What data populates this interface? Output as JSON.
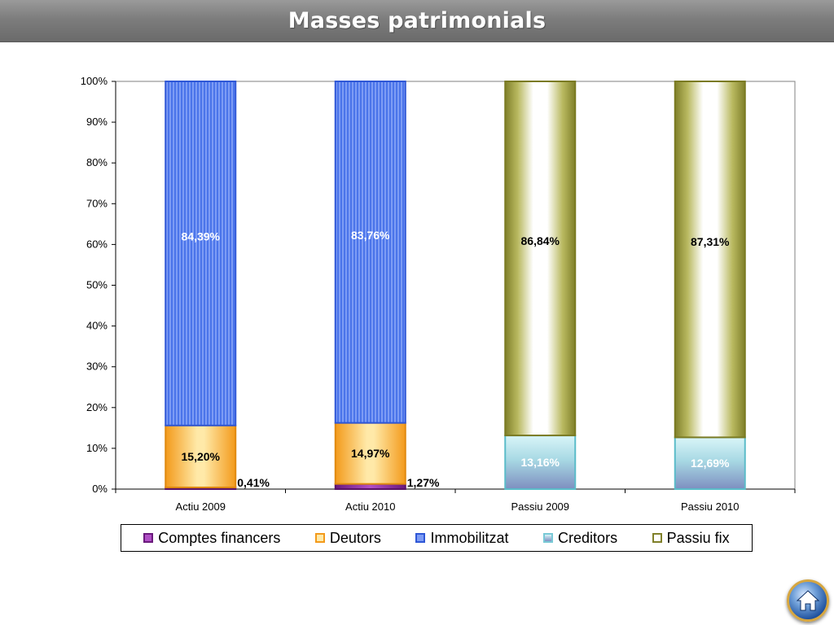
{
  "title": "Masses patrimonials",
  "colors": {
    "comptes_financers": "#7b1f8f",
    "deutors": "#f5a623",
    "immobilitzat": "#3f67e0",
    "creditors": "#b5e6ee",
    "passiu_fix": "#8f8f2c"
  },
  "chart_data": {
    "type": "bar",
    "stacked": "percent",
    "categories": [
      "Actiu 2009",
      "Actiu 2010",
      "Passiu 2009",
      "Passiu 2010"
    ],
    "series": [
      {
        "name": "Comptes financers",
        "key": "comptes_financers",
        "values": [
          0.41,
          1.27,
          0,
          0
        ],
        "labels": [
          "0,41%",
          "1,27%",
          "",
          ""
        ]
      },
      {
        "name": "Deutors",
        "key": "deutors",
        "values": [
          15.2,
          14.97,
          0,
          0
        ],
        "labels": [
          "15,20%",
          "14,97%",
          "",
          ""
        ]
      },
      {
        "name": "Immobilitzat",
        "key": "immobilitzat",
        "values": [
          84.39,
          83.76,
          0,
          0
        ],
        "labels": [
          "84,39%",
          "83,76%",
          "",
          ""
        ]
      },
      {
        "name": "Creditors",
        "key": "creditors",
        "values": [
          0,
          0,
          13.16,
          12.69
        ],
        "labels": [
          "",
          "",
          "13,16%",
          "12,69%"
        ]
      },
      {
        "name": "Passiu fix",
        "key": "passiu_fix",
        "values": [
          0,
          0,
          86.84,
          87.31
        ],
        "labels": [
          "",
          "",
          "86,84%",
          "87,31%"
        ]
      }
    ],
    "yticks": [
      "0%",
      "10%",
      "20%",
      "30%",
      "40%",
      "50%",
      "60%",
      "70%",
      "80%",
      "90%",
      "100%"
    ],
    "ylim": [
      0,
      100
    ],
    "legend_position": "bottom"
  },
  "legend": {
    "items": [
      "Comptes financers",
      "Deutors",
      "Immobilitzat",
      "Creditors",
      "Passiu fix"
    ]
  },
  "nav": {
    "home_icon": "home-icon"
  }
}
